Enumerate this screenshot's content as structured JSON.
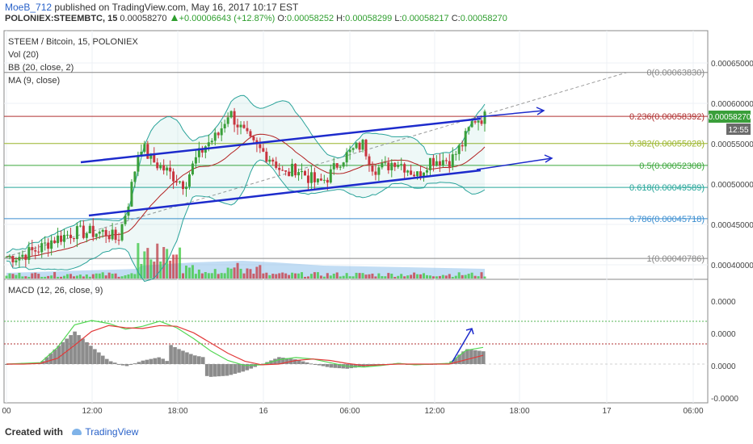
{
  "header": {
    "author": "MoeB_712",
    "published": "published on TradingView.com, May 16, 2017 10:17 EST",
    "symbol": "POLONIEX:STEEMBTC, 15",
    "last": "0.00058270",
    "change": "+0.00006643 (+12.87%)",
    "o_label": "O:",
    "o": "0.00058252",
    "h_label": "H:",
    "h": "0.00058299",
    "l_label": "L:",
    "l": "0.00058217",
    "c_label": "C:",
    "c": "0.00058270"
  },
  "legend": {
    "title": "STEEM / Bitcoin, 15, POLONIEX",
    "vol": "Vol (20)",
    "bb": "BB (20, close, 2)",
    "ma": "MA (9, close)",
    "macd": "MACD (12, 26, close, 9)"
  },
  "footer": {
    "created": "Created with",
    "brand": "TradingView"
  },
  "colors": {
    "up": "#3a9f3a",
    "down": "#c8343e",
    "trend": "#1d2bcc",
    "bb": "#2aa39a",
    "ma": "#b22222",
    "macd_line": "#53d653",
    "signal": "#e23a3a",
    "hist": "#8c8c8c",
    "fib_red": "#b03030"
  },
  "chart_data": [
    {
      "type": "candlestick",
      "title": "STEEM / Bitcoin, 15, POLONIEX",
      "ylim": [
        0.00038,
        0.00068
      ],
      "y_ticks": [
        "0.00065000",
        "0.00060000",
        "0.00055000",
        "0.00050000",
        "0.00045000",
        "0.00040000"
      ],
      "y_tick_values": [
        0.00065,
        0.0006,
        0.00055,
        0.0005,
        0.00045,
        0.0004
      ],
      "x_ticks": [
        "00",
        "12:00",
        "18:00",
        "16",
        "06:00",
        "12:00",
        "18:00",
        "17",
        "06:00"
      ],
      "price_label": "0.00058270",
      "time_label": "12:55",
      "close_path": [
        0.00041,
        0.00041,
        0.000415,
        0.00042,
        0.00043,
        0.000435,
        0.00044,
        0.00044,
        0.00044,
        0.00044,
        0.00043,
        0.00048,
        0.00055,
        0.00053,
        0.00052,
        0.00051,
        0.0005,
        0.00053,
        0.00055,
        0.00056,
        0.00059,
        0.00057,
        0.00055,
        0.00054,
        0.00053,
        0.00051,
        0.00052,
        0.00051,
        0.0005,
        0.00051,
        0.00053,
        0.00054,
        0.00055,
        0.00052,
        0.00052,
        0.00053,
        0.00052,
        0.00051,
        0.00053,
        0.00053,
        0.00053,
        0.00055,
        0.00058,
        0.000583
      ],
      "fib_levels": [
        {
          "label": "0(0.00063830)",
          "value": 0.0006383,
          "color": "#888888"
        },
        {
          "label": "0.236(0.00058392)",
          "value": 0.00058392,
          "color": "#b03030"
        },
        {
          "label": "0.382(0.00055028)",
          "value": 0.00055028,
          "color": "#9bb52a"
        },
        {
          "label": "0.5(0.00052308)",
          "value": 0.00052308,
          "color": "#3aa63a"
        },
        {
          "label": "0.618(0.00049589)",
          "value": 0.00049589,
          "color": "#26a69a"
        },
        {
          "label": "0.786(0.00045718)",
          "value": 0.00045718,
          "color": "#3b8ed0"
        },
        {
          "label": "1(0.00040786)",
          "value": 0.00040786,
          "color": "#888888"
        }
      ]
    },
    {
      "type": "bar",
      "title": "MACD (12, 26, close, 9)",
      "y_ticks": [
        "0.0000",
        "0.0000",
        "0.0000",
        "-0.0000"
      ],
      "x_ticks": [
        "00",
        "12:00",
        "18:00",
        "16",
        "06:00",
        "12:00",
        "18:00",
        "17",
        "06:00"
      ],
      "series": [
        {
          "name": "MACD",
          "values": [
            0.0,
            0.1,
            0.2,
            2.3,
            5.4,
            6.0,
            5.6,
            4.8,
            5.2,
            5.9,
            5.0,
            3.5,
            1.8,
            0.5,
            -0.2,
            -0.1,
            0.6,
            0.9,
            0.7,
            0.2,
            -0.3,
            -0.4,
            -0.2,
            0.1,
            -0.1,
            0.0,
            0.1,
            1.9,
            2.3
          ]
        },
        {
          "name": "Signal",
          "values": [
            0.0,
            0.0,
            0.1,
            0.8,
            2.6,
            4.5,
            5.3,
            5.0,
            4.9,
            5.3,
            5.2,
            4.3,
            2.9,
            1.5,
            0.4,
            -0.1,
            0.0,
            0.5,
            0.7,
            0.5,
            0.1,
            -0.2,
            -0.1,
            0.0,
            0.0,
            0.0,
            0.0,
            0.6,
            1.2
          ]
        }
      ]
    }
  ]
}
